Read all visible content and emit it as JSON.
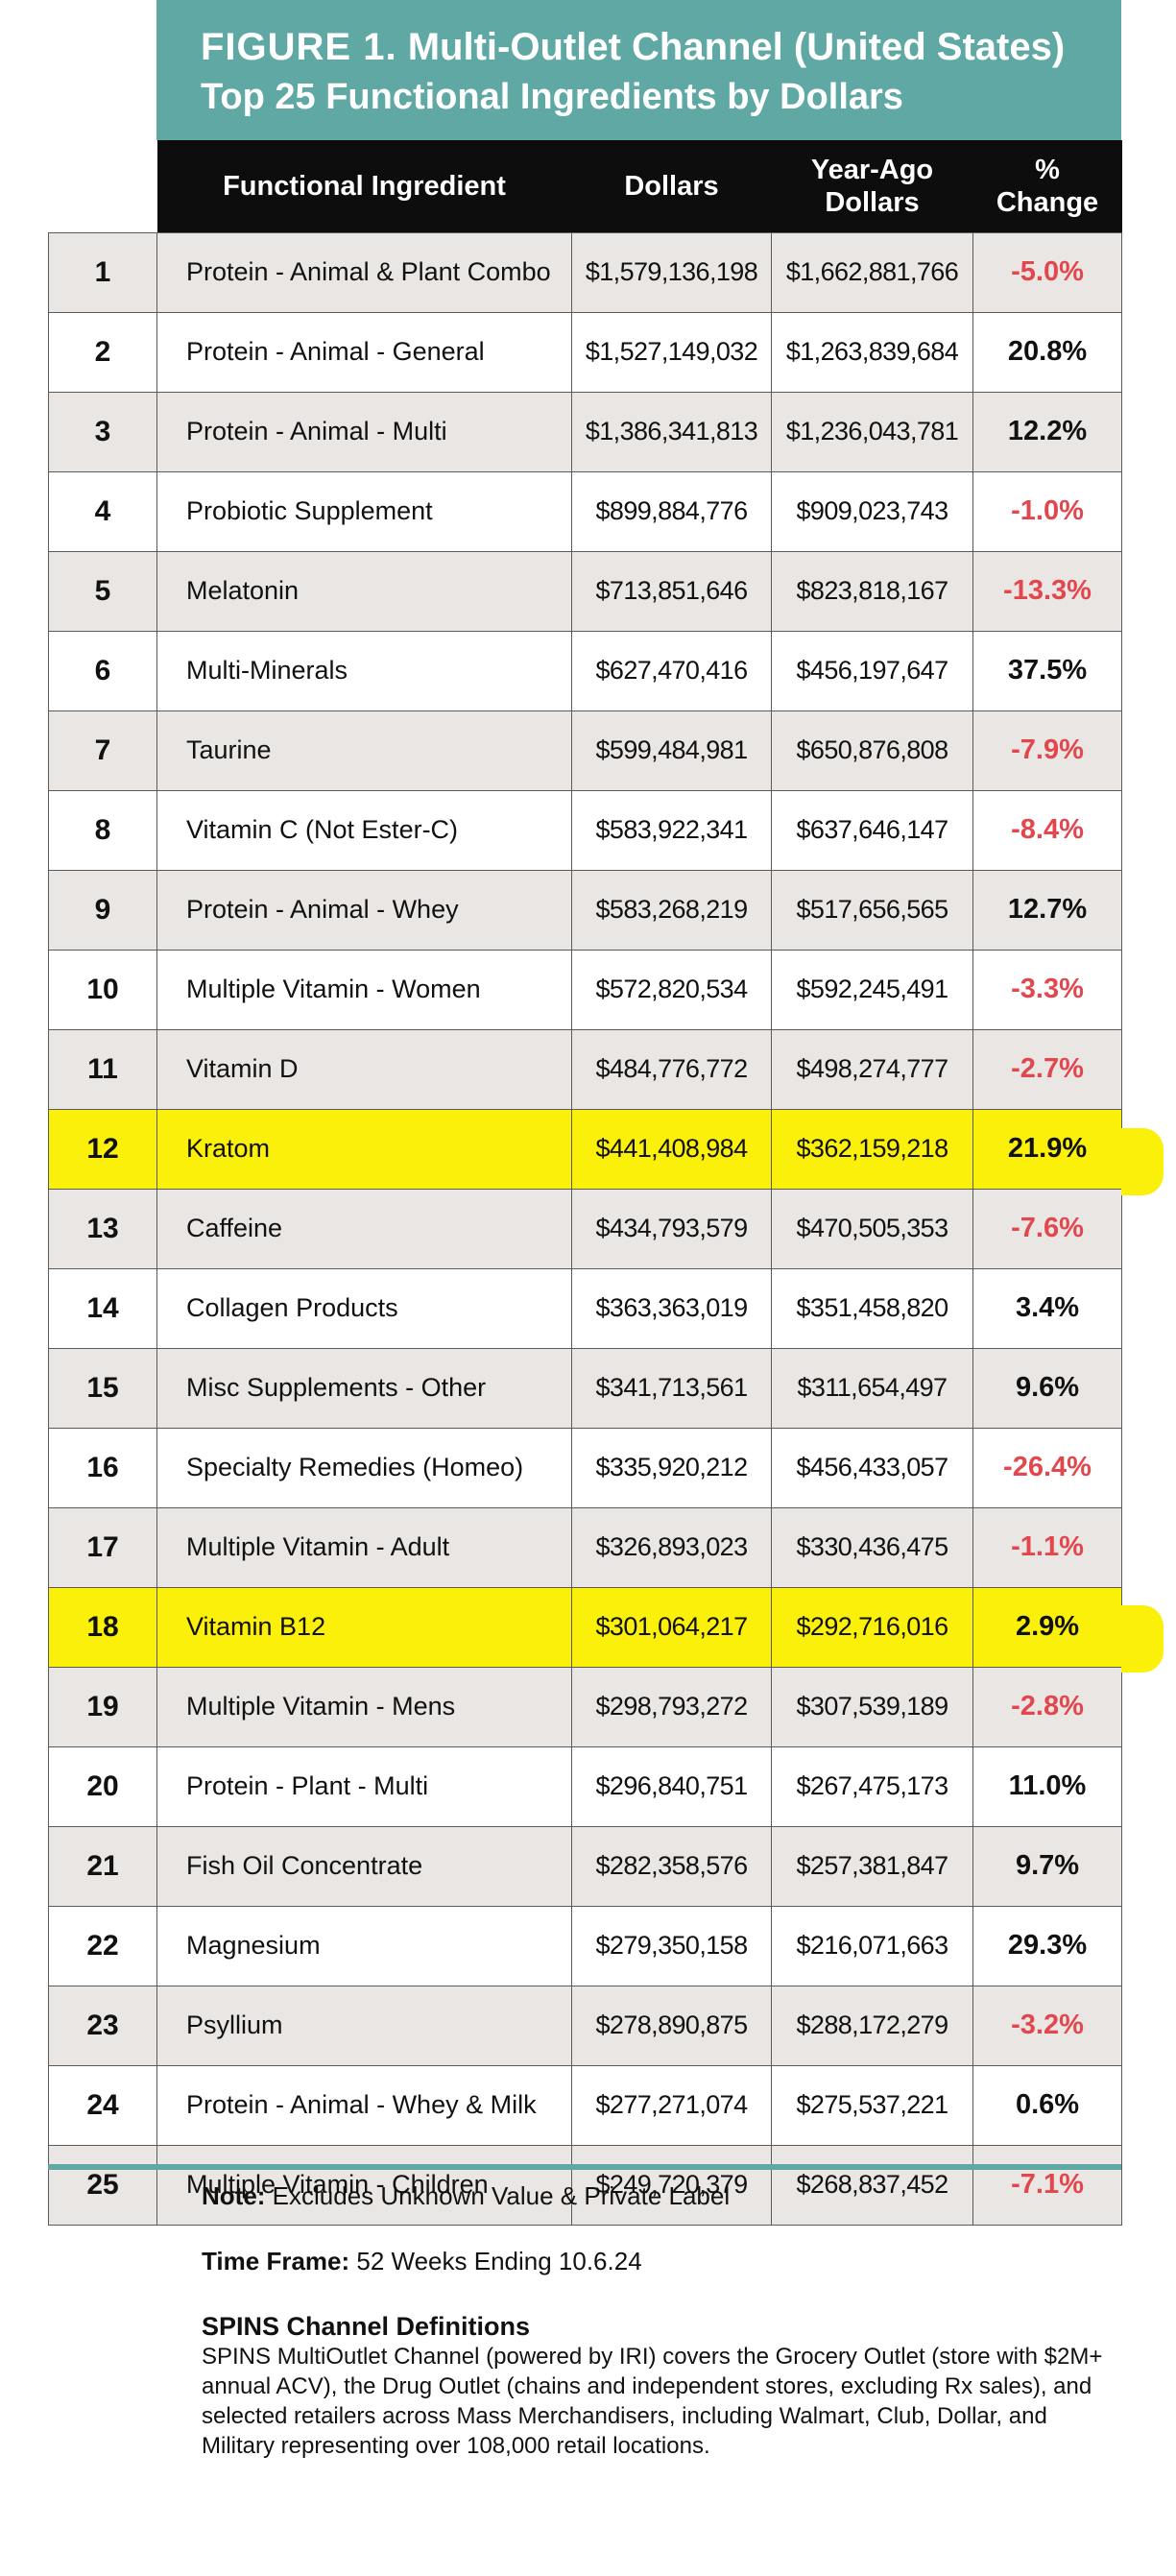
{
  "header": {
    "figure_label": "FIGURE 1.",
    "title_line1": "Multi-Outlet Channel (United States)",
    "title_line2": "Top 25 Functional Ingredients by Dollars"
  },
  "columns": {
    "ingredient": "Functional Ingredient",
    "dollars": "Dollars",
    "year_ago_1": "Year-Ago",
    "year_ago_2": "Dollars",
    "change_1": "%",
    "change_2": "Change"
  },
  "highlight_color": "#fbf00a",
  "negative_color": "#e2474e",
  "accent_color": "#5fa8a4",
  "rows": [
    {
      "rank": "1",
      "name": "Protein - Animal & Plant Combo",
      "dollars": "$1,579,136,198",
      "year_ago": "$1,662,881,766",
      "change": "-5.0%",
      "negative": true,
      "highlight": false
    },
    {
      "rank": "2",
      "name": "Protein - Animal - General",
      "dollars": "$1,527,149,032",
      "year_ago": "$1,263,839,684",
      "change": "20.8%",
      "negative": false,
      "highlight": false
    },
    {
      "rank": "3",
      "name": "Protein - Animal - Multi",
      "dollars": "$1,386,341,813",
      "year_ago": "$1,236,043,781",
      "change": "12.2%",
      "negative": false,
      "highlight": false
    },
    {
      "rank": "4",
      "name": "Probiotic Supplement",
      "dollars": "$899,884,776",
      "year_ago": "$909,023,743",
      "change": "-1.0%",
      "negative": true,
      "highlight": false
    },
    {
      "rank": "5",
      "name": "Melatonin",
      "dollars": "$713,851,646",
      "year_ago": "$823,818,167",
      "change": "-13.3%",
      "negative": true,
      "highlight": false
    },
    {
      "rank": "6",
      "name": "Multi-Minerals",
      "dollars": "$627,470,416",
      "year_ago": "$456,197,647",
      "change": "37.5%",
      "negative": false,
      "highlight": false
    },
    {
      "rank": "7",
      "name": "Taurine",
      "dollars": "$599,484,981",
      "year_ago": "$650,876,808",
      "change": "-7.9%",
      "negative": true,
      "highlight": false
    },
    {
      "rank": "8",
      "name": "Vitamin C (Not Ester-C)",
      "dollars": "$583,922,341",
      "year_ago": "$637,646,147",
      "change": "-8.4%",
      "negative": true,
      "highlight": false
    },
    {
      "rank": "9",
      "name": "Protein - Animal - Whey",
      "dollars": "$583,268,219",
      "year_ago": "$517,656,565",
      "change": "12.7%",
      "negative": false,
      "highlight": false
    },
    {
      "rank": "10",
      "name": "Multiple Vitamin - Women",
      "dollars": "$572,820,534",
      "year_ago": "$592,245,491",
      "change": "-3.3%",
      "negative": true,
      "highlight": false
    },
    {
      "rank": "11",
      "name": "Vitamin D",
      "dollars": "$484,776,772",
      "year_ago": "$498,274,777",
      "change": "-2.7%",
      "negative": true,
      "highlight": false
    },
    {
      "rank": "12",
      "name": "Kratom",
      "dollars": "$441,408,984",
      "year_ago": "$362,159,218",
      "change": "21.9%",
      "negative": false,
      "highlight": true
    },
    {
      "rank": "13",
      "name": "Caffeine",
      "dollars": "$434,793,579",
      "year_ago": "$470,505,353",
      "change": "-7.6%",
      "negative": true,
      "highlight": false
    },
    {
      "rank": "14",
      "name": "Collagen Products",
      "dollars": "$363,363,019",
      "year_ago": "$351,458,820",
      "change": "3.4%",
      "negative": false,
      "highlight": false
    },
    {
      "rank": "15",
      "name": "Misc Supplements - Other",
      "dollars": "$341,713,561",
      "year_ago": "$311,654,497",
      "change": "9.6%",
      "negative": false,
      "highlight": false
    },
    {
      "rank": "16",
      "name": "Specialty Remedies (Homeo)",
      "dollars": "$335,920,212",
      "year_ago": "$456,433,057",
      "change": "-26.4%",
      "negative": true,
      "highlight": false
    },
    {
      "rank": "17",
      "name": "Multiple Vitamin - Adult",
      "dollars": "$326,893,023",
      "year_ago": "$330,436,475",
      "change": "-1.1%",
      "negative": true,
      "highlight": false
    },
    {
      "rank": "18",
      "name": "Vitamin B12",
      "dollars": "$301,064,217",
      "year_ago": "$292,716,016",
      "change": "2.9%",
      "negative": false,
      "highlight": true
    },
    {
      "rank": "19",
      "name": "Multiple Vitamin - Mens",
      "dollars": "$298,793,272",
      "year_ago": "$307,539,189",
      "change": "-2.8%",
      "negative": true,
      "highlight": false
    },
    {
      "rank": "20",
      "name": "Protein - Plant - Multi",
      "dollars": "$296,840,751",
      "year_ago": "$267,475,173",
      "change": "11.0%",
      "negative": false,
      "highlight": false
    },
    {
      "rank": "21",
      "name": "Fish Oil Concentrate",
      "dollars": "$282,358,576",
      "year_ago": "$257,381,847",
      "change": "9.7%",
      "negative": false,
      "highlight": false
    },
    {
      "rank": "22",
      "name": "Magnesium",
      "dollars": "$279,350,158",
      "year_ago": "$216,071,663",
      "change": "29.3%",
      "negative": false,
      "highlight": false
    },
    {
      "rank": "23",
      "name": "Psyllium",
      "dollars": "$278,890,875",
      "year_ago": "$288,172,279",
      "change": "-3.2%",
      "negative": true,
      "highlight": false
    },
    {
      "rank": "24",
      "name": "Protein - Animal - Whey & Milk",
      "dollars": "$277,271,074",
      "year_ago": "$275,537,221",
      "change": "0.6%",
      "negative": false,
      "highlight": false
    },
    {
      "rank": "25",
      "name": "Multiple Vitamin - Children",
      "dollars": "$249,720,379",
      "year_ago": "$268,837,452",
      "change": "-7.1%",
      "negative": true,
      "highlight": false
    }
  ],
  "notes": {
    "note_label": "Note:",
    "note_text": "Excludes Unknown Value & Private Label",
    "timeframe_label": "Time Frame:",
    "timeframe_text": "52 Weeks Ending 10.6.24",
    "definitions_title": "SPINS Channel Definitions",
    "definitions_text": "SPINS MultiOutlet Channel (powered by IRI) covers the Grocery Outlet (store with $2M+ annual ACV), the Drug Outlet (chains and independent stores, excluding Rx sales), and selected retailers across Mass Merchandisers, including Walmart, Club, Dollar, and Military representing over 108,000 retail locations."
  }
}
